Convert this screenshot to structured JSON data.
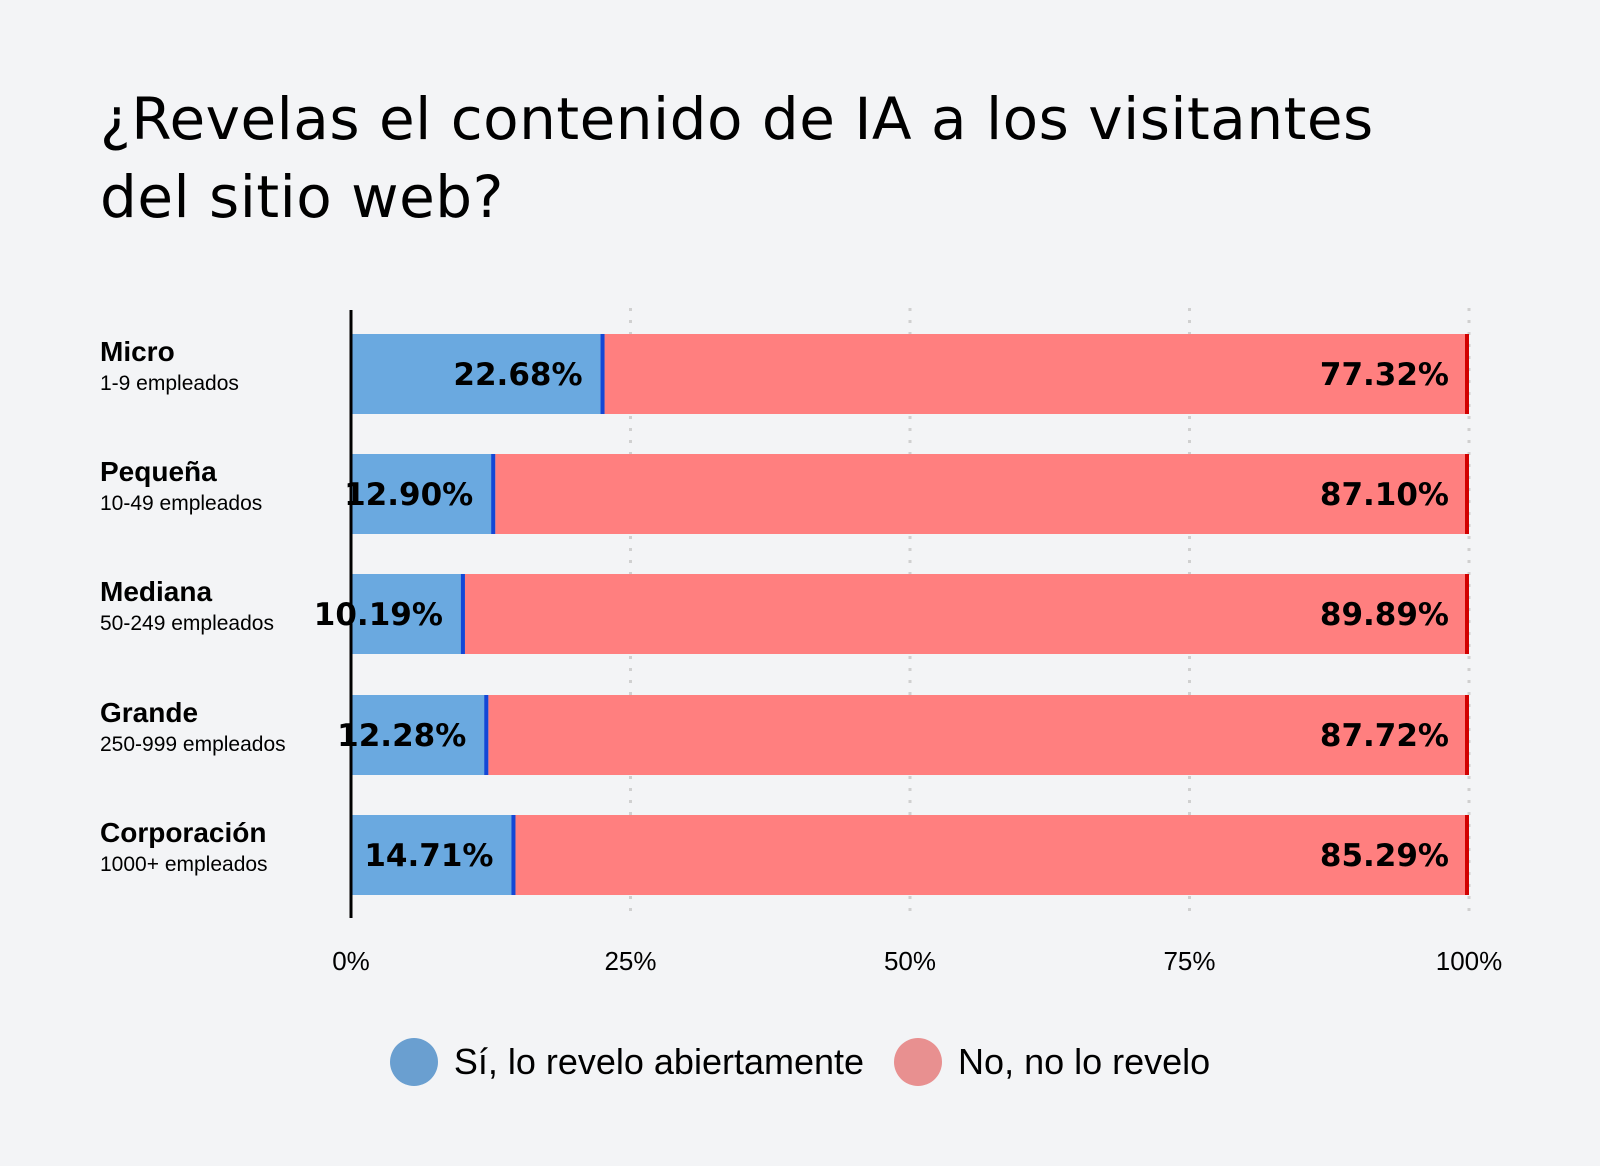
{
  "chart_data": {
    "type": "bar",
    "stacked": true,
    "orientation": "horizontal",
    "title": "¿Revelas el contenido de IA a los visitantes del sitio web?",
    "title_lines": [
      "¿Revelas el contenido de IA a los visitantes",
      "del sitio web?"
    ],
    "categories": [
      {
        "name": "Micro",
        "sub": "1-9 empleados"
      },
      {
        "name": "Pequeña",
        "sub": "10-49 empleados"
      },
      {
        "name": "Mediana",
        "sub": "50-249 empleados"
      },
      {
        "name": "Grande",
        "sub": "250-999 empleados"
      },
      {
        "name": "Corporación",
        "sub": "1000+ empleados"
      }
    ],
    "series": [
      {
        "name": "Sí, lo revelo abiertamente",
        "color": "#6aa9e0",
        "edge": "#1447d6",
        "legend_color": "#6a9fd0",
        "values": [
          22.68,
          12.9,
          10.19,
          12.28,
          14.71
        ],
        "labels": [
          "22.68%",
          "12.90%",
          "10.19%",
          "12.28%",
          "14.71%"
        ]
      },
      {
        "name": "No, no lo revelo",
        "color": "#ff7f7f",
        "edge": "#d10000",
        "legend_color": "#e89090",
        "values": [
          77.32,
          87.1,
          89.89,
          87.72,
          85.29
        ],
        "labels": [
          "77.32%",
          "87.10%",
          "89.89%",
          "87.72%",
          "85.29%"
        ]
      }
    ],
    "xlim": [
      0,
      100
    ],
    "xticks": [
      0,
      25,
      50,
      75,
      100
    ],
    "xtick_labels": [
      "0%",
      "25%",
      "50%",
      "75%",
      "100%"
    ],
    "grid": "vertical dotted",
    "legend": "bottom-center"
  }
}
